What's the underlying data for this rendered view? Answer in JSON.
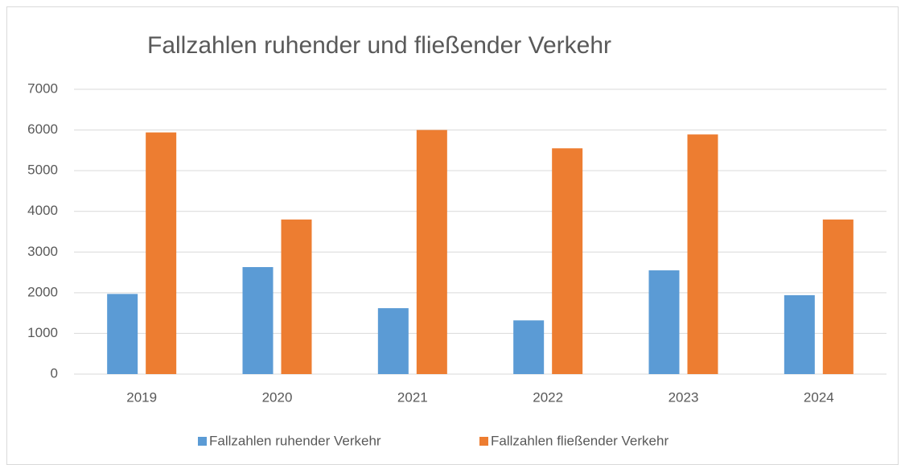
{
  "chart_data": {
    "type": "bar",
    "title": "Fallzahlen ruhender und fließender Verkehr",
    "categories": [
      "2019",
      "2020",
      "2021",
      "2022",
      "2023",
      "2024"
    ],
    "series": [
      {
        "name": "Fallzahlen ruhender Verkehr",
        "color": "#5b9bd5",
        "values": [
          1970,
          2630,
          1620,
          1320,
          2550,
          1940
        ]
      },
      {
        "name": "Fallzahlen fließender Verkehr",
        "color": "#ed7d31",
        "values": [
          5940,
          3800,
          6000,
          5550,
          5890,
          3800
        ]
      }
    ],
    "ylim": [
      0,
      7000
    ],
    "yticks": [
      0,
      1000,
      2000,
      3000,
      4000,
      5000,
      6000,
      7000
    ],
    "grid": true,
    "legend": "bottom"
  }
}
